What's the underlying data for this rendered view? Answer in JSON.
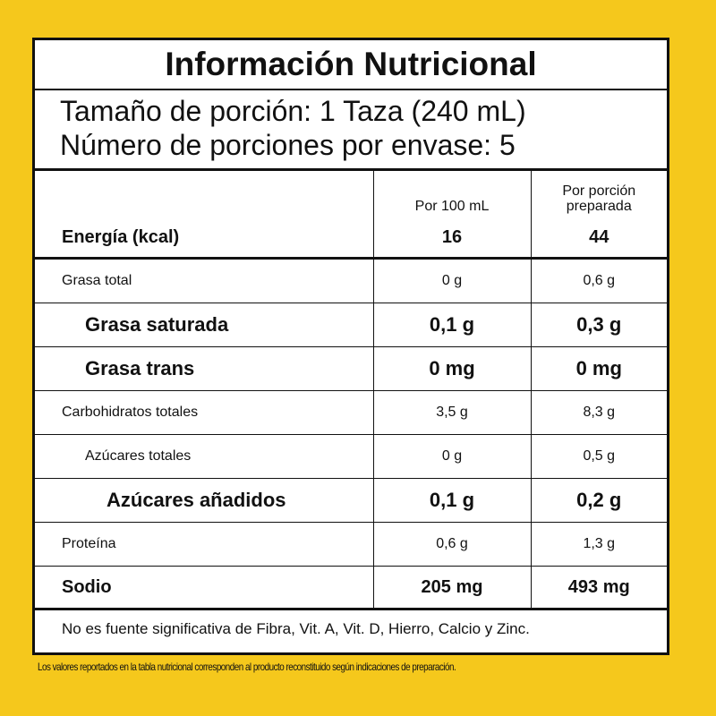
{
  "title": "Información Nutricional",
  "serving": {
    "size": "Tamaño de porción: 1 Taza (240 mL)",
    "per_container": "Número de porciones por envase: 5"
  },
  "columns": {
    "per100": "Por 100 mL",
    "per_portion_line1": "Por porción",
    "per_portion_line2": "preparada"
  },
  "energy": {
    "label": "Energía (kcal)",
    "per100": "16",
    "portion": "44"
  },
  "rows": [
    {
      "label": "Grasa total",
      "per100": "0 g",
      "portion": "0,6 g"
    },
    {
      "label": "Grasa saturada",
      "per100": "0,1 g",
      "portion": "0,3 g"
    },
    {
      "label": "Grasa trans",
      "per100": "0 mg",
      "portion": "0 mg"
    },
    {
      "label": "Carbohidratos totales",
      "per100": "3,5 g",
      "portion": "8,3 g"
    },
    {
      "label": "Azúcares totales",
      "per100": "0 g",
      "portion": "0,5 g"
    },
    {
      "label": "Azúcares añadidos",
      "per100": "0,1 g",
      "portion": "0,2 g"
    },
    {
      "label": "Proteína",
      "per100": "0,6 g",
      "portion": "1,3 g"
    }
  ],
  "sodio": {
    "label": "Sodio",
    "per100": "205 mg",
    "portion": "493 mg"
  },
  "footnote": "No es fuente significativa de Fibra, Vit. A, Vit. D, Hierro, Calcio y Zinc.",
  "disclaimer": "Los valores reportados en la tabla nutricional corresponden al producto reconstituido según indicaciones de preparación."
}
